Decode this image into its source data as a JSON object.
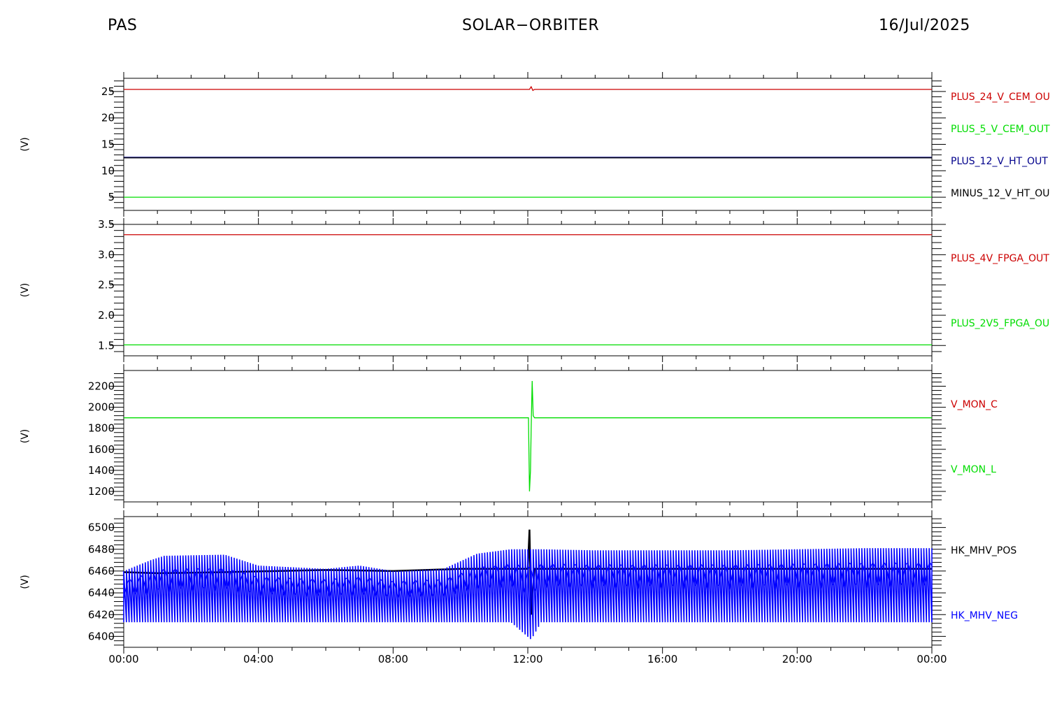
{
  "header": {
    "left": "PAS",
    "center": "SOLAR−ORBITER",
    "right": "16/Jul/2025"
  },
  "x_tick_labels": [
    "00:00",
    "04:00",
    "08:00",
    "12:00",
    "16:00",
    "20:00",
    "00:00"
  ],
  "chart_data": [
    {
      "type": "line",
      "ylabel": "(V)",
      "x_unit": "hours",
      "xlim": [
        0,
        24
      ],
      "ylim": [
        2.5,
        27.5
      ],
      "yticks": [
        5,
        10,
        15,
        20,
        25
      ],
      "ytick_labels": [
        "5",
        "10",
        "15",
        "20",
        "25"
      ],
      "grid": false,
      "legend_placement": "right",
      "series": [
        {
          "name": "PLUS_24_V_CEM_OU",
          "color": "#cc0000",
          "x": [
            0,
            12.05,
            12.1,
            12.15,
            12.2,
            24
          ],
          "y": [
            25.4,
            25.4,
            25.9,
            25.2,
            25.4,
            25.4
          ]
        },
        {
          "name": "PLUS_5_V_CEM_OUT",
          "color": "#00dd00",
          "x": [
            0,
            24
          ],
          "y": [
            5.0,
            5.0
          ]
        },
        {
          "name": "PLUS_12_V_HT_OUT",
          "color": "#00008b",
          "x": [
            0,
            24
          ],
          "y": [
            12.5,
            12.5
          ]
        },
        {
          "name": "MINUS_12_V_HT_OU",
          "color": "#000000",
          "x": [
            0,
            24
          ],
          "y": [
            12.45,
            12.45
          ]
        }
      ]
    },
    {
      "type": "line",
      "ylabel": "(V)",
      "x_unit": "hours",
      "xlim": [
        0,
        24
      ],
      "ylim": [
        1.33,
        3.5
      ],
      "yticks": [
        1.5,
        2.0,
        2.5,
        3.0,
        3.5
      ],
      "ytick_labels": [
        "1.5",
        "2.0",
        "2.5",
        "3.0",
        "3.5"
      ],
      "grid": false,
      "legend_placement": "right",
      "series": [
        {
          "name": "PLUS_4V_FPGA_OUT",
          "color": "#cc0000",
          "x": [
            0,
            24
          ],
          "y": [
            3.33,
            3.33
          ]
        },
        {
          "name": "PLUS_2V5_FPGA_OU",
          "color": "#00dd00",
          "x": [
            0,
            24
          ],
          "y": [
            1.51,
            1.51
          ]
        }
      ]
    },
    {
      "type": "line",
      "ylabel": "(V)",
      "x_unit": "hours",
      "xlim": [
        0,
        24
      ],
      "ylim": [
        1100,
        2350
      ],
      "yticks": [
        1200,
        1400,
        1600,
        1800,
        2000,
        2200
      ],
      "ytick_labels": [
        "1200",
        "1400",
        "1600",
        "1800",
        "2000",
        "2200"
      ],
      "grid": false,
      "legend_placement": "right",
      "series": [
        {
          "name": "V_MON_C",
          "color": "#cc0000",
          "x": [],
          "y": []
        },
        {
          "name": "V_MON_L",
          "color": "#00dd00",
          "x": [
            0,
            12.02,
            12.05,
            12.08,
            12.1,
            12.13,
            12.16,
            12.2,
            24
          ],
          "y": [
            1900,
            1900,
            1200,
            1400,
            1800,
            2250,
            1920,
            1900,
            1900
          ]
        }
      ]
    },
    {
      "type": "line",
      "ylabel": "(V)",
      "x_unit": "hours",
      "xlim": [
        0,
        24
      ],
      "ylim": [
        6390,
        6510
      ],
      "yticks": [
        6400,
        6420,
        6440,
        6460,
        6480,
        6500
      ],
      "ytick_labels": [
        "6400",
        "6420",
        "6440",
        "6460",
        "6480",
        "6500"
      ],
      "grid": false,
      "legend_placement": "right",
      "series": [
        {
          "name": "HK_MHV_POS",
          "color": "#000000",
          "x": [
            0,
            1,
            3,
            6,
            8,
            10,
            12,
            12.05,
            12.1,
            12.2,
            13,
            16,
            20,
            24
          ],
          "y": [
            6459,
            6458,
            6459,
            6461,
            6460,
            6462,
            6462,
            6498,
            6420,
            6462,
            6462,
            6462,
            6462,
            6462
          ]
        },
        {
          "name": "HK_MHV_NEG",
          "color": "#0000ff",
          "band_x": [
            0,
            0.8,
            1.2,
            3,
            4,
            6,
            7,
            8,
            9.5,
            10.5,
            11.5,
            12.1,
            12.4,
            14,
            16,
            18,
            20,
            22,
            24
          ],
          "band_low": [
            6413,
            6413,
            6413,
            6413,
            6413,
            6413,
            6413,
            6413,
            6413,
            6413,
            6413,
            6397,
            6413,
            6413,
            6413,
            6413,
            6413,
            6413,
            6413
          ],
          "band_high": [
            6460,
            6470,
            6474,
            6475,
            6465,
            6462,
            6465,
            6460,
            6462,
            6476,
            6480,
            6480,
            6480,
            6479,
            6479,
            6479,
            6480,
            6481,
            6481
          ]
        }
      ]
    }
  ]
}
